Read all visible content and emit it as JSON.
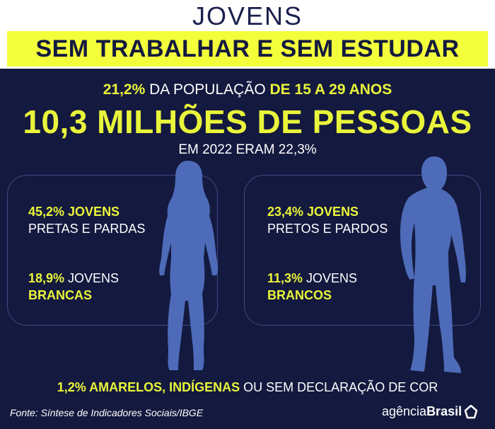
{
  "header": {
    "title": "JOVENS",
    "subtitle": "SEM TRABALHAR E SEM ESTUDAR"
  },
  "summary": {
    "line1_percent": "21,2%",
    "line1_text": " DA POPULAÇÃO ",
    "line1_age": "DE 15 A 29 ANOS",
    "headline": "10,3 MILHÕES DE PESSOAS",
    "previous_year": "EM 2022 ERAM 22,3%"
  },
  "women": {
    "stat1_highlight": "45,2% JOVENS",
    "stat1_text": "PRETAS E PARDAS",
    "stat2_highlight": "18,9%",
    "stat2_text": " JOVENS",
    "stat2_highlight2": "BRANCAS"
  },
  "men": {
    "stat1_highlight": "23,4% JOVENS",
    "stat1_text": "PRETOS E PARDOS",
    "stat2_highlight": "11,3%",
    "stat2_text": " JOVENS",
    "stat2_highlight2": "BRANCOS"
  },
  "other": {
    "highlight": "1,2% AMARELOS, INDÍGENAS",
    "text": " OU SEM DECLARAÇÃO DE COR"
  },
  "footer": {
    "source": "Fonte:  Síntese de Indicadores Sociais/IBGE",
    "logo_prefix": "agência",
    "logo_brand": "Brasil"
  },
  "colors": {
    "accent_yellow": "#e9f53a",
    "band_yellow": "#f3ff3a",
    "navy": "#14193f",
    "silhouette_blue": "#4d6bb8"
  }
}
